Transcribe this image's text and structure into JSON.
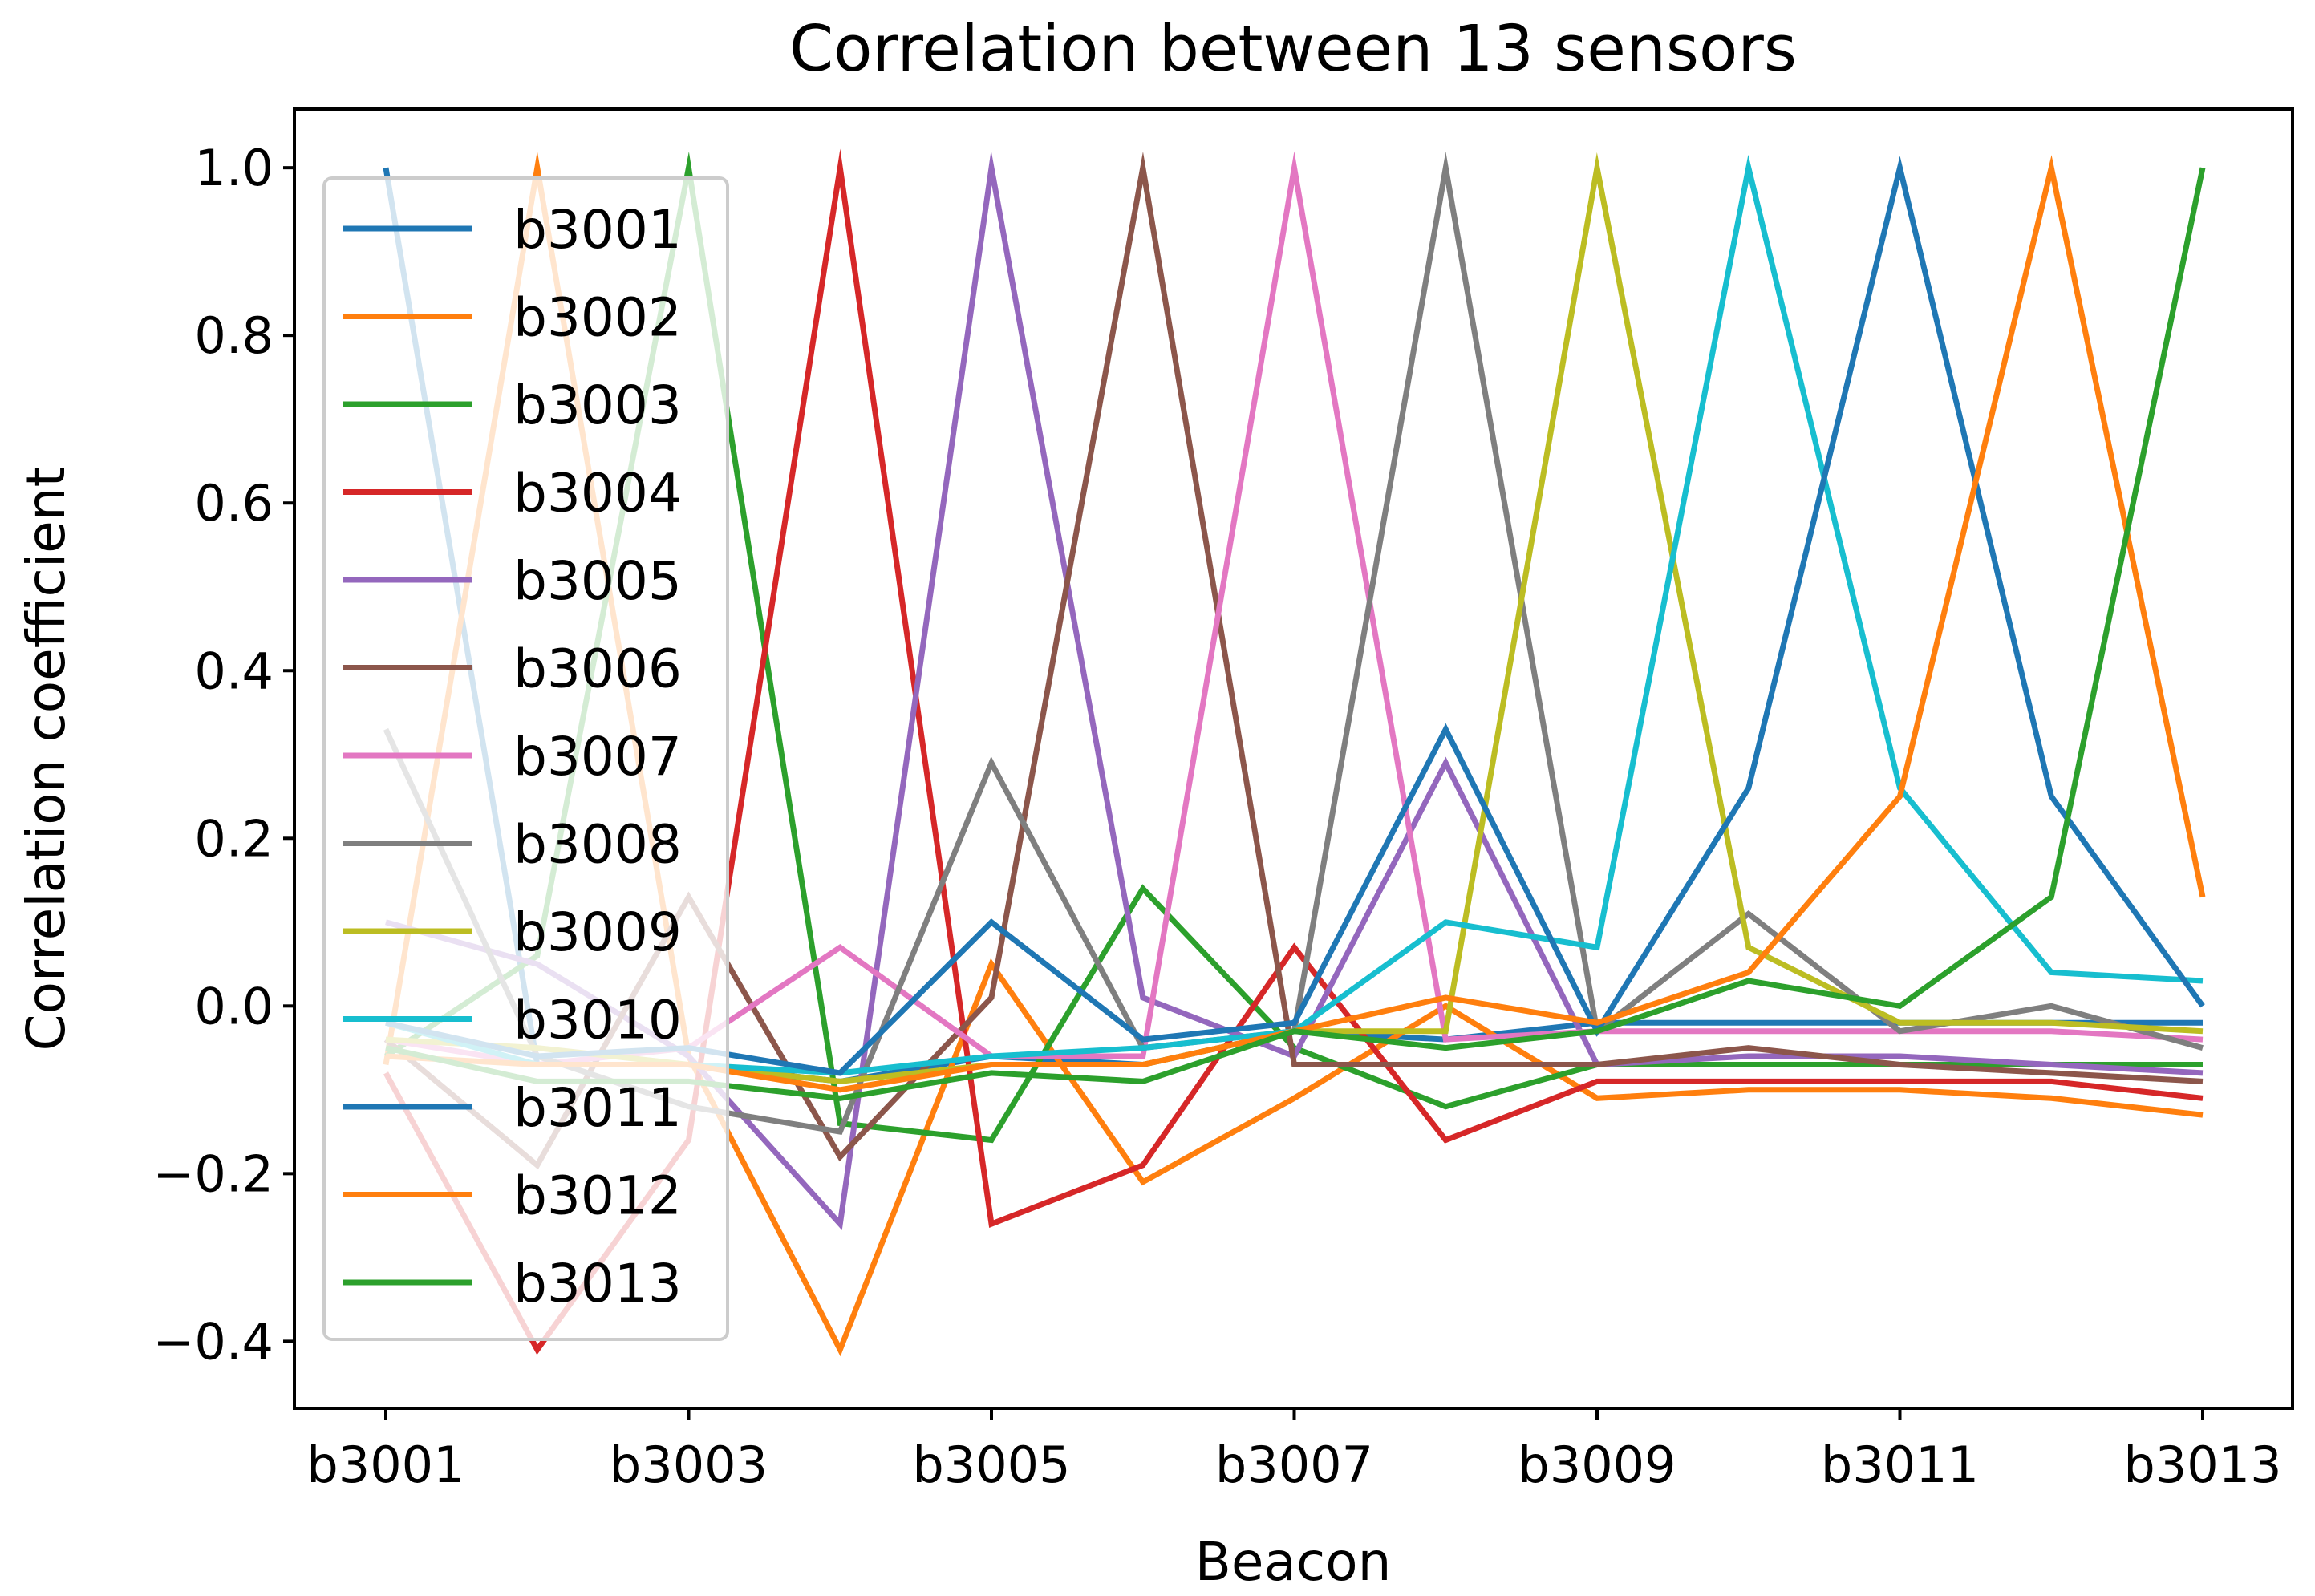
{
  "chart_data": {
    "type": "line",
    "title": "Correlation between 13 sensors",
    "xlabel": "Beacon",
    "ylabel": "Correlation coefficient",
    "categories": [
      "b3001",
      "b3002",
      "b3003",
      "b3004",
      "b3005",
      "b3006",
      "b3007",
      "b3008",
      "b3009",
      "b3010",
      "b3011",
      "b3012",
      "b3013"
    ],
    "xticks": [
      "b3001",
      "b3003",
      "b3005",
      "b3007",
      "b3009",
      "b3011",
      "b3013"
    ],
    "ylim": [
      -0.48,
      1.07
    ],
    "yticks": [
      -0.4,
      -0.2,
      0.0,
      0.2,
      0.4,
      0.6,
      0.8,
      1.0
    ],
    "ytick_labels": [
      "−0.4",
      "−0.2",
      "0.0",
      "0.2",
      "0.4",
      "0.6",
      "0.8",
      "1.0"
    ],
    "legend_position": "upper-left",
    "series": [
      {
        "name": "b3001",
        "color": "#1f77b4",
        "values": [
          1.0,
          -0.07,
          -0.07,
          -0.09,
          -0.06,
          -0.07,
          -0.03,
          -0.04,
          -0.02,
          -0.02,
          -0.02,
          -0.02,
          -0.02
        ]
      },
      {
        "name": "b3002",
        "color": "#ff7f0e",
        "values": [
          -0.07,
          1.0,
          -0.06,
          -0.41,
          0.05,
          -0.21,
          -0.11,
          0.0,
          -0.11,
          -0.1,
          -0.1,
          -0.11,
          -0.13
        ]
      },
      {
        "name": "b3003",
        "color": "#2ca02c",
        "values": [
          -0.06,
          0.06,
          1.0,
          -0.14,
          -0.16,
          0.14,
          -0.05,
          -0.12,
          -0.07,
          -0.07,
          -0.07,
          -0.07,
          -0.07
        ]
      },
      {
        "name": "b3004",
        "color": "#d62728",
        "values": [
          -0.08,
          -0.41,
          -0.16,
          1.0,
          -0.26,
          -0.19,
          0.07,
          -0.16,
          -0.09,
          -0.09,
          -0.09,
          -0.09,
          -0.11
        ]
      },
      {
        "name": "b3005",
        "color": "#9467bd",
        "values": [
          0.1,
          0.05,
          -0.06,
          -0.26,
          1.0,
          0.01,
          -0.06,
          0.29,
          -0.07,
          -0.06,
          -0.06,
          -0.07,
          -0.08
        ]
      },
      {
        "name": "b3006",
        "color": "#8c564b",
        "values": [
          -0.04,
          -0.19,
          0.13,
          -0.18,
          0.01,
          1.0,
          -0.07,
          -0.07,
          -0.07,
          -0.05,
          -0.07,
          -0.08,
          -0.09
        ]
      },
      {
        "name": "b3007",
        "color": "#e377c2",
        "values": [
          -0.04,
          -0.07,
          -0.05,
          0.07,
          -0.06,
          -0.06,
          1.0,
          -0.04,
          -0.03,
          -0.03,
          -0.03,
          -0.03,
          -0.04
        ]
      },
      {
        "name": "b3008",
        "color": "#7f7f7f",
        "values": [
          0.33,
          -0.06,
          -0.12,
          -0.15,
          0.29,
          -0.05,
          -0.03,
          1.0,
          -0.03,
          0.11,
          -0.03,
          0.0,
          -0.05
        ]
      },
      {
        "name": "b3009",
        "color": "#bcbd22",
        "values": [
          -0.04,
          -0.05,
          -0.07,
          -0.09,
          -0.07,
          -0.07,
          -0.03,
          -0.03,
          1.0,
          0.07,
          -0.02,
          -0.02,
          -0.03
        ]
      },
      {
        "name": "b3010",
        "color": "#17becf",
        "values": [
          -0.02,
          -0.07,
          -0.07,
          -0.08,
          -0.06,
          -0.05,
          -0.03,
          0.1,
          0.07,
          1.0,
          0.26,
          0.04,
          0.03
        ]
      },
      {
        "name": "b3011",
        "color": "#1f77b4",
        "values": [
          -0.02,
          -0.06,
          -0.05,
          -0.08,
          0.1,
          -0.04,
          -0.02,
          0.33,
          -0.03,
          0.26,
          1.0,
          0.25,
          0.0
        ]
      },
      {
        "name": "b3012",
        "color": "#ff7f0e",
        "values": [
          -0.06,
          -0.07,
          -0.07,
          -0.1,
          -0.07,
          -0.07,
          -0.03,
          0.01,
          -0.02,
          0.04,
          0.25,
          1.0,
          0.13
        ]
      },
      {
        "name": "b3013",
        "color": "#2ca02c",
        "values": [
          -0.05,
          -0.09,
          -0.09,
          -0.11,
          -0.08,
          -0.09,
          -0.03,
          -0.05,
          -0.03,
          0.03,
          0.0,
          0.13,
          1.0
        ]
      }
    ]
  }
}
